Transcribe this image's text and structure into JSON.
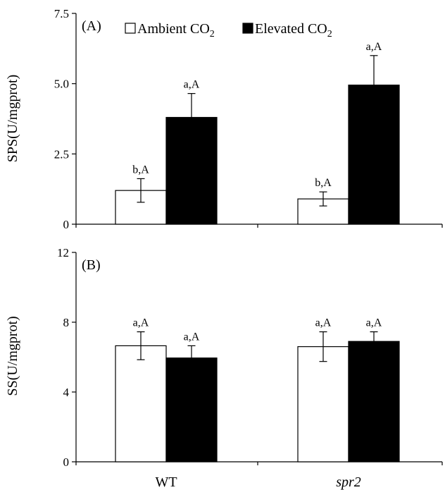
{
  "legend": {
    "ambient_label": "Ambient CO",
    "elevated_label": "Elevated CO",
    "subscript": "2",
    "ambient_color": "#ffffff",
    "elevated_color": "#000000"
  },
  "chart_data": [
    {
      "type": "bar",
      "panel_label": "(A)",
      "ylabel": "SPS(U/mgprot)",
      "xlabel": "",
      "ylim": [
        0,
        7.5
      ],
      "yticks": [
        "0",
        "2.5",
        "5.0",
        "7.5"
      ],
      "ytick_values": [
        0,
        2.5,
        5.0,
        7.5
      ],
      "categories": [
        "WT",
        "spr2"
      ],
      "series": [
        {
          "name": "Ambient CO2",
          "values": [
            1.2,
            0.9
          ],
          "errors": [
            0.42,
            0.25
          ],
          "labels": [
            "b,A",
            "b,A"
          ]
        },
        {
          "name": "Elevated CO2",
          "values": [
            3.8,
            4.95
          ],
          "errors": [
            0.85,
            1.05
          ],
          "labels": [
            "a,A",
            "a,A"
          ]
        }
      ],
      "legend": "top-left",
      "grid": false
    },
    {
      "type": "bar",
      "panel_label": "(B)",
      "ylabel": "SS(U/mgprot)",
      "xlabel": "",
      "ylim": [
        0,
        12
      ],
      "yticks": [
        "0",
        "4",
        "8",
        "12"
      ],
      "ytick_values": [
        0,
        4,
        8,
        12
      ],
      "categories": [
        "WT",
        "spr2"
      ],
      "series": [
        {
          "name": "Ambient CO2",
          "values": [
            6.65,
            6.6
          ],
          "errors": [
            0.8,
            0.85
          ],
          "labels": [
            "a,A",
            "a,A"
          ]
        },
        {
          "name": "Elevated CO2",
          "values": [
            5.95,
            6.9
          ],
          "errors": [
            0.7,
            0.55
          ],
          "labels": [
            "a,A",
            "a,A"
          ]
        }
      ],
      "legend": "none",
      "grid": false
    }
  ]
}
